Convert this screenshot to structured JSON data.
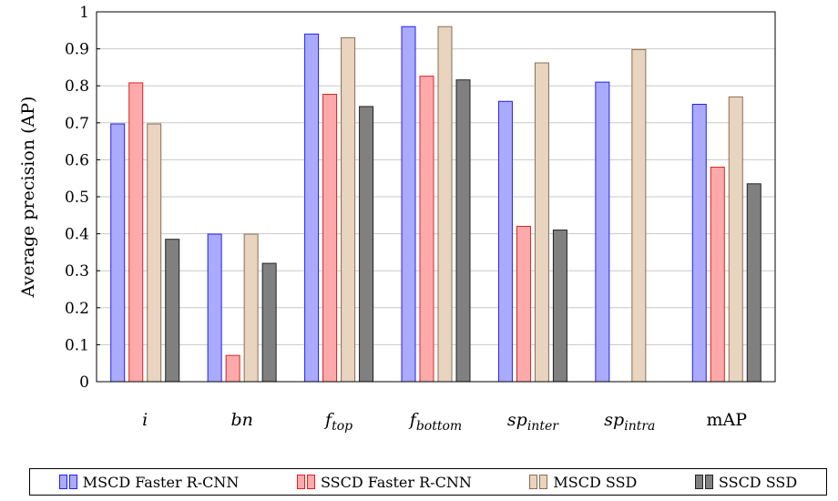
{
  "chart_data": {
    "type": "bar",
    "title": "",
    "xlabel": "",
    "ylabel": "Average precision (AP)",
    "ylim": [
      0,
      1
    ],
    "yticks": [
      "0",
      "0.1",
      "0.2",
      "0.3",
      "0.4",
      "0.5",
      "0.6",
      "0.7",
      "0.8",
      "0.9",
      "1"
    ],
    "grid": "horizontal",
    "legend_position": "bottom",
    "categories": [
      {
        "base": "i",
        "sub": ""
      },
      {
        "base": "bn",
        "sub": ""
      },
      {
        "base": "f",
        "sub": "top"
      },
      {
        "base": "f",
        "sub": "bottom"
      },
      {
        "base": "sp",
        "sub": "inter"
      },
      {
        "base": "sp",
        "sub": "intra"
      },
      {
        "base": "mAP",
        "sub": "",
        "upright": true
      }
    ],
    "series": [
      {
        "name": "MSCD Faster R-CNN",
        "fill": "#aaaaff",
        "stroke": "#2222ee",
        "values": [
          0.697,
          0.399,
          0.94,
          0.96,
          0.758,
          0.81,
          0.75
        ]
      },
      {
        "name": "SSCD Faster R-CNN",
        "fill": "#ffaaaa",
        "stroke": "#dd2222",
        "values": [
          0.808,
          0.071,
          0.777,
          0.826,
          0.42,
          null,
          0.58
        ]
      },
      {
        "name": "MSCD SSD",
        "fill": "#e8d4bf",
        "stroke": "#8b6d54",
        "values": [
          0.697,
          0.399,
          0.93,
          0.96,
          0.862,
          0.898,
          0.77
        ]
      },
      {
        "name": "SSCD SSD",
        "fill": "#808080",
        "stroke": "#222222",
        "values": [
          0.385,
          0.32,
          0.744,
          0.816,
          0.41,
          null,
          0.535
        ]
      }
    ]
  }
}
